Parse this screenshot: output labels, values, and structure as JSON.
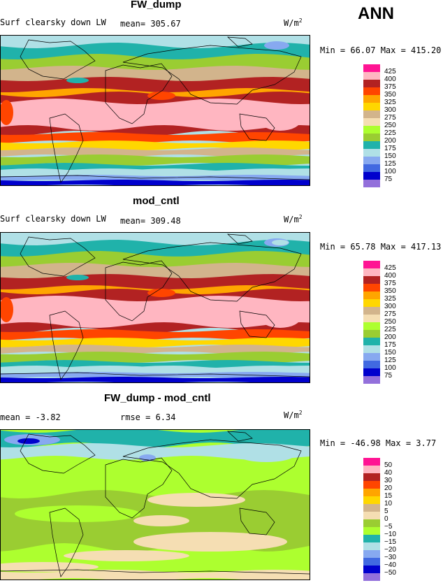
{
  "season": "ANN",
  "colors": {
    "abs": [
      "#9370db",
      "#0000cd",
      "#4169e1",
      "#87a9f0",
      "#b0e0e6",
      "#20b2aa",
      "#9acd32",
      "#adff2f",
      "#f5deb3",
      "#d2b48c",
      "#ffd700",
      "#ffa500",
      "#ff4500",
      "#b22222",
      "#ffb6c1",
      "#ff1493"
    ],
    "diff": [
      "#9370db",
      "#0000cd",
      "#4169e1",
      "#87a9f0",
      "#b0e0e6",
      "#20b2aa",
      "#adff2f",
      "#9acd32",
      "#f5deb3",
      "#d2b48c",
      "#ffd700",
      "#ffa500",
      "#ff4500",
      "#b22222",
      "#ffb6c1",
      "#ff1493"
    ]
  },
  "panels": [
    {
      "title": "FW_dump",
      "variable": "Surf clearsky down LW",
      "stat1": "mean= 305.67",
      "stat2": "",
      "units": "W/m",
      "units_sup": "2",
      "minmax": "Min =   66.07 Max = 415.20",
      "levels": [
        "425",
        "400",
        "375",
        "350",
        "325",
        "300",
        "275",
        "250",
        "225",
        "200",
        "175",
        "150",
        "125",
        "100",
        "75"
      ],
      "palette": "abs"
    },
    {
      "title": "mod_cntl",
      "variable": "Surf clearsky down LW",
      "stat1": "mean= 309.48",
      "stat2": "",
      "units": "W/m",
      "units_sup": "2",
      "minmax": "Min =   65.78 Max = 417.13",
      "levels": [
        "425",
        "400",
        "375",
        "350",
        "325",
        "300",
        "275",
        "250",
        "225",
        "200",
        "175",
        "150",
        "125",
        "100",
        "75"
      ],
      "palette": "abs"
    },
    {
      "title": "FW_dump - mod_cntl",
      "variable": "",
      "stat1": "mean =   -3.82",
      "stat2": "rmse =    6.34",
      "units": "W/m",
      "units_sup": "2",
      "minmax": "Min = -46.98 Max =    3.77",
      "levels": [
        "50",
        "40",
        "30",
        "20",
        "15",
        "10",
        "5",
        "0",
        "−5",
        "−10",
        "−15",
        "−20",
        "−30",
        "−40",
        "−50"
      ],
      "palette": "diff"
    }
  ]
}
